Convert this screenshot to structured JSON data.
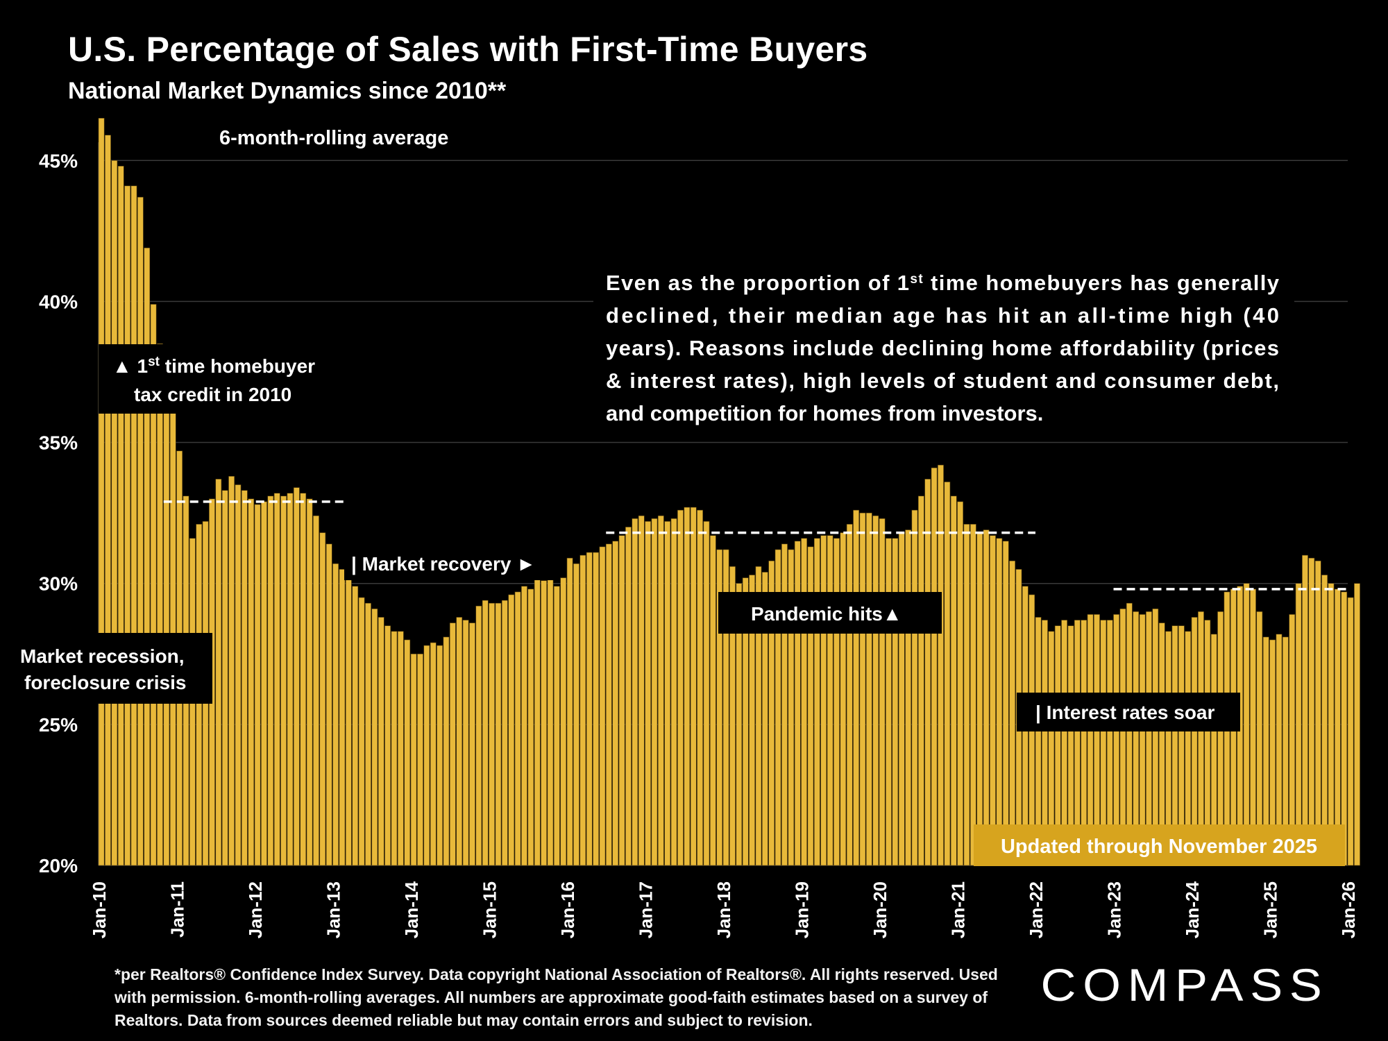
{
  "header": {
    "title": "U.S. Percentage of Sales with First-Time Buyers",
    "subtitle": "National Market Dynamics since 2010**"
  },
  "footnote": "*per Realtors® Confidence Index Survey. Data copyright National Association of Realtors®. All rights reserved. Used with permission. 6-month-rolling averages. All numbers are approximate good-faith estimates based on a survey of Realtors. Data from sources deemed reliable but may contain errors and subject to revision.",
  "logo": {
    "text": "COMPASS"
  },
  "colors": {
    "background": "#000000",
    "bar": "#e8b93a",
    "bar_stripe": "#5a4310",
    "update_badge": "#d7a41e",
    "text": "#ffffff"
  },
  "chart_data": {
    "type": "bar",
    "series_label": "6-month-rolling average",
    "ylim": [
      20,
      47
    ],
    "y_ticks": [
      20,
      25,
      30,
      35,
      40,
      45
    ],
    "y_tick_labels": [
      "20%",
      "25%",
      "30%",
      "35%",
      "40%",
      "45%"
    ],
    "x_tick_labels": [
      "Jan-10",
      "Jan-11",
      "Jan-12",
      "Jan-13",
      "Jan-14",
      "Jan-15",
      "Jan-16",
      "Jan-17",
      "Jan-18",
      "Jan-19",
      "Jan-20",
      "Jan-21",
      "Jan-22",
      "Jan-23",
      "Jan-24",
      "Jan-25",
      "Jan-26"
    ],
    "grid": true,
    "start": "Jan-10",
    "values": [
      46.5,
      45.9,
      45.0,
      44.8,
      44.1,
      44.1,
      43.7,
      41.9,
      39.9,
      38.5,
      37.2,
      36.9,
      34.7,
      33.1,
      31.6,
      32.1,
      32.2,
      33.0,
      33.7,
      33.3,
      33.8,
      33.5,
      33.3,
      33.0,
      32.8,
      32.9,
      33.1,
      33.2,
      33.1,
      33.2,
      33.4,
      33.2,
      33.0,
      32.4,
      31.8,
      31.4,
      30.7,
      30.5,
      30.2,
      29.9,
      29.5,
      29.3,
      29.1,
      28.8,
      28.5,
      28.3,
      28.3,
      28.0,
      27.5,
      27.5,
      27.8,
      27.9,
      27.8,
      28.1,
      28.6,
      28.8,
      28.7,
      28.6,
      29.2,
      29.4,
      29.3,
      29.3,
      29.4,
      29.6,
      29.7,
      29.9,
      29.8,
      30.3,
      30.1,
      30.2,
      29.9,
      30.2,
      30.9,
      30.7,
      31.0,
      31.1,
      31.1,
      31.3,
      31.4,
      31.5,
      31.7,
      32.0,
      32.3,
      32.4,
      32.2,
      32.3,
      32.4,
      32.2,
      32.3,
      32.6,
      32.7,
      32.7,
      32.6,
      32.2,
      31.7,
      31.2,
      31.2,
      30.6,
      30.0,
      30.2,
      30.3,
      30.6,
      30.4,
      30.8,
      31.2,
      31.4,
      31.2,
      31.5,
      31.6,
      31.3,
      31.6,
      31.7,
      31.7,
      31.6,
      31.8,
      32.1,
      32.6,
      32.5,
      32.5,
      32.4,
      32.3,
      31.6,
      31.6,
      31.8,
      31.9,
      32.6,
      33.1,
      33.7,
      34.1,
      34.2,
      33.6,
      33.1,
      32.9,
      32.1,
      32.1,
      31.8,
      31.9,
      31.7,
      31.6,
      31.5,
      30.8,
      30.5,
      29.9,
      29.6,
      28.8,
      28.7,
      28.3,
      28.5,
      28.7,
      28.5,
      28.7,
      28.7,
      28.9,
      28.9,
      28.7,
      28.7,
      28.9,
      29.1,
      29.3,
      29.0,
      28.9,
      29.0,
      29.1,
      28.6,
      28.3,
      28.5,
      28.5,
      28.3,
      28.8,
      29.0,
      28.7,
      28.2,
      29.0,
      29.7,
      29.8,
      29.9,
      30.0,
      29.8,
      29.0,
      28.1,
      28.0,
      28.2,
      28.1,
      28.9,
      30.0,
      31.0,
      30.9,
      30.8,
      30.3,
      30.0,
      29.8,
      29.7,
      29.5,
      30.0
    ],
    "reference_lines": [
      {
        "from": "Nov-10",
        "to": "Mar-13",
        "value": 32.9
      },
      {
        "from": "Jul-16",
        "to": "Jan-22",
        "value": 31.8
      },
      {
        "from": "Jan-23",
        "to": "Jan-26",
        "value": 29.8
      }
    ],
    "annotations": {
      "tax_credit_line1": "▲ 1st time homebuyer",
      "tax_credit_line2": "tax credit in 2010",
      "recession_line1": "Market recession,",
      "recession_line2": "foreclosure crisis",
      "recovery": "| Market recovery ►",
      "pandemic": "Pandemic hits▲",
      "rates": "| Interest rates soar",
      "updated": "Updated through November 2025",
      "commentary_lines": [
        "Even as the proportion of 1st time homebuyers has generally",
        "declined, their median age has hit an all-time high (40",
        "years). Reasons include declining home affordability (prices",
        "& interest rates), high levels of student and consumer debt,",
        "and competition for homes from investors."
      ]
    }
  }
}
